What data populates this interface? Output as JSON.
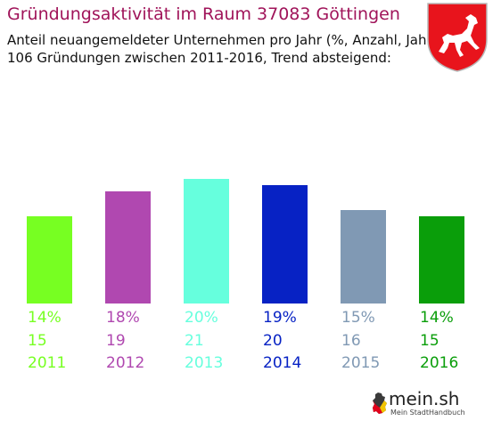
{
  "header": {
    "title": "Gründungsaktivität im Raum 37083 Göttingen",
    "subtitle_line1": "Anteil neuangemeldeter Unternehmen pro Jahr (%, Anzahl, Jahr)",
    "subtitle_line2": "106 Gründungen zwischen 2011-2016, Trend absteigend:"
  },
  "brand": {
    "name": "mein.sh",
    "tagline": "Mein StadtHandbuch",
    "icon": "germany-map-icon"
  },
  "coat_of_arms": {
    "icon": "lower-saxony-horse-icon",
    "color": "#e8141c"
  },
  "chart_data": {
    "type": "bar",
    "categories": [
      "2011",
      "2012",
      "2013",
      "2014",
      "2015",
      "2016"
    ],
    "values": [
      14,
      18,
      20,
      19,
      15,
      14
    ],
    "percent_labels": [
      "14%",
      "18%",
      "20%",
      "19%",
      "15%",
      "14%"
    ],
    "counts": [
      "15",
      "19",
      "21",
      "20",
      "16",
      "15"
    ],
    "colors": [
      "#77ff22",
      "#b048b0",
      "#66ffdd",
      "#0722c4",
      "#8099b4",
      "#0a9e0a"
    ],
    "ylim": [
      0,
      28
    ],
    "grid": false,
    "legend": "none"
  }
}
